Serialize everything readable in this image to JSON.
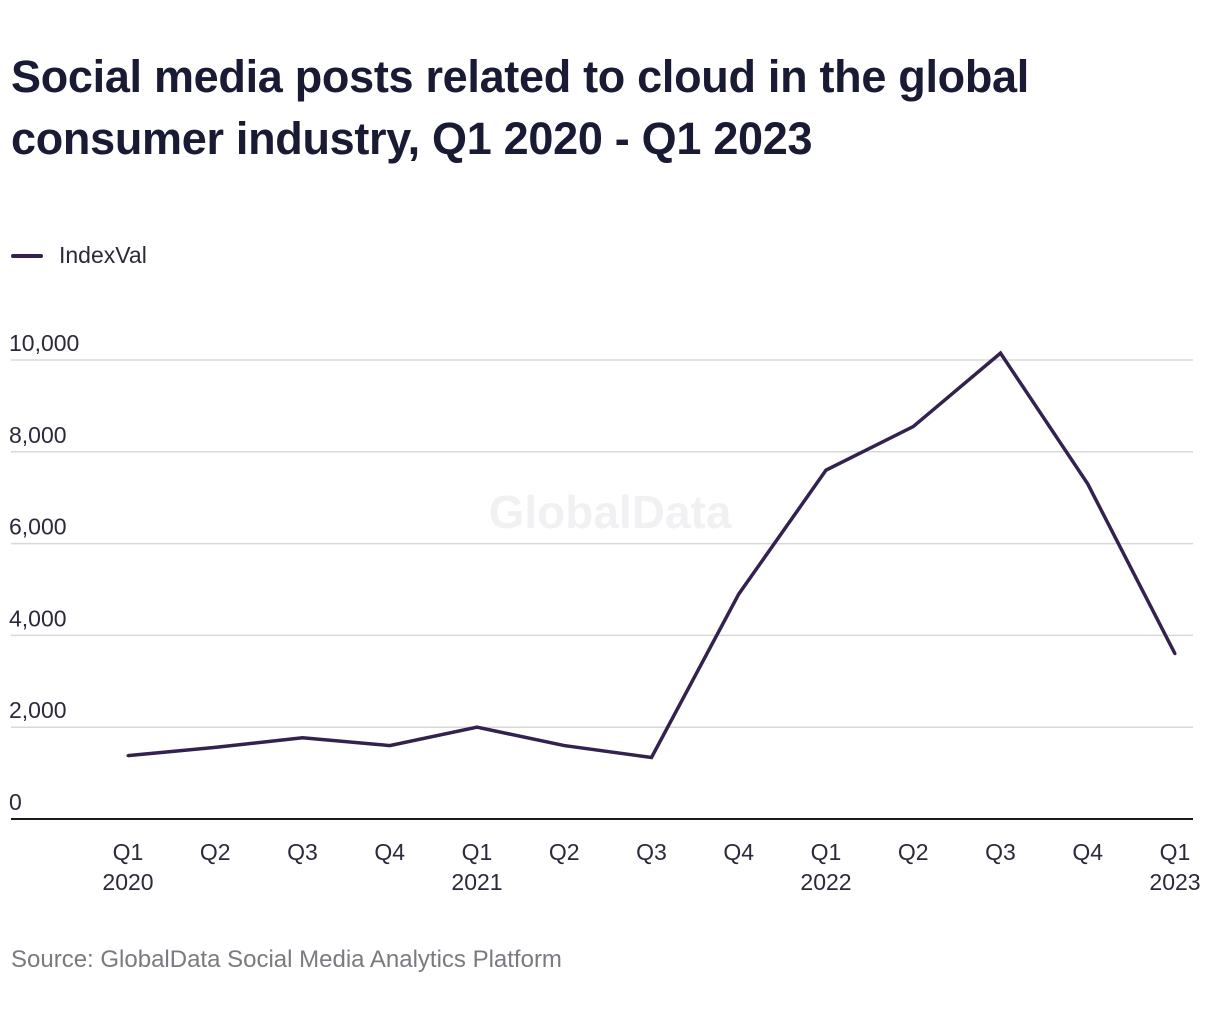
{
  "title": "Social media posts related to cloud in the global consumer industry, Q1 2020 - Q1 2023",
  "legend": {
    "label": "IndexVal"
  },
  "watermark": "GlobalData",
  "source": "Source: GlobalData Social Media Analytics Platform",
  "colors": {
    "line": "#33224f",
    "grid": "#d8d8d8",
    "axis": "#1a1a1a"
  },
  "chart_data": {
    "type": "line",
    "title": "Social media posts related to cloud in the global consumer industry, Q1 2020 - Q1 2023",
    "xlabel": "",
    "ylabel": "",
    "categories": [
      [
        "Q1",
        "2020"
      ],
      [
        "Q2",
        ""
      ],
      [
        "Q3",
        ""
      ],
      [
        "Q4",
        ""
      ],
      [
        "Q1",
        "2021"
      ],
      [
        "Q2",
        ""
      ],
      [
        "Q3",
        ""
      ],
      [
        "Q4",
        ""
      ],
      [
        "Q1",
        "2022"
      ],
      [
        "Q2",
        ""
      ],
      [
        "Q3",
        ""
      ],
      [
        "Q4",
        ""
      ],
      [
        "Q1",
        "2023"
      ]
    ],
    "series": [
      {
        "name": "IndexVal",
        "values": [
          1380,
          1560,
          1770,
          1600,
          2000,
          1600,
          1340,
          4900,
          7600,
          8550,
          10150,
          7300,
          3600
        ]
      }
    ],
    "ylim": [
      0,
      10000
    ],
    "yticks": [
      0,
      2000,
      4000,
      6000,
      8000,
      10000
    ],
    "ytick_labels": [
      "0",
      "2,000",
      "4,000",
      "6,000",
      "8,000",
      "10,000"
    ],
    "grid": true,
    "legend_position": "top-left"
  }
}
